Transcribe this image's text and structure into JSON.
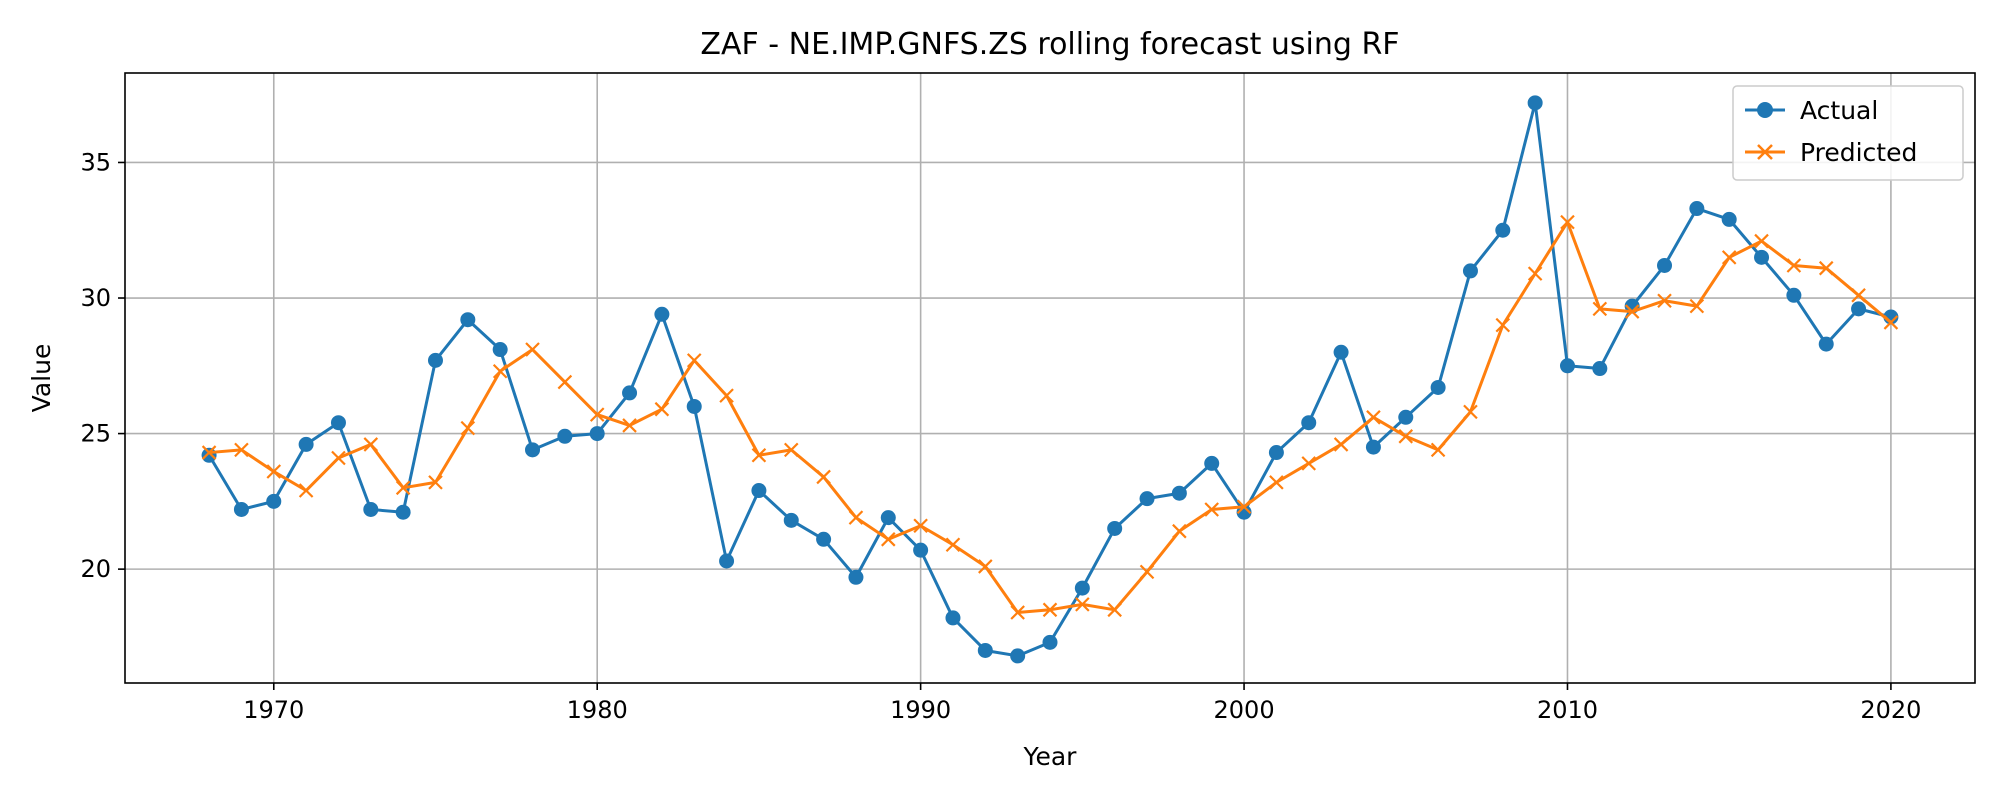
{
  "chart_data": {
    "type": "line",
    "title": "ZAF - NE.IMP.GNFS.ZS rolling forecast using RF",
    "xlabel": "Year",
    "ylabel": "Value",
    "xlim": [
      1965.4,
      2022.6
    ],
    "ylim": [
      15.8,
      38.3
    ],
    "xticks": [
      1970,
      1980,
      1990,
      2000,
      2010,
      2020
    ],
    "yticks": [
      20,
      25,
      30,
      35
    ],
    "grid": true,
    "legend_position": "top-right",
    "x": [
      1968,
      1969,
      1970,
      1971,
      1972,
      1973,
      1974,
      1975,
      1976,
      1977,
      1978,
      1979,
      1980,
      1981,
      1982,
      1983,
      1984,
      1985,
      1986,
      1987,
      1988,
      1989,
      1990,
      1991,
      1992,
      1993,
      1994,
      1995,
      1996,
      1997,
      1998,
      1999,
      2000,
      2001,
      2002,
      2003,
      2004,
      2005,
      2006,
      2007,
      2008,
      2009,
      2010,
      2011,
      2012,
      2013,
      2014,
      2015,
      2016,
      2017,
      2018,
      2019,
      2020
    ],
    "series": [
      {
        "name": "Actual",
        "color": "#1f77b4",
        "marker": "circle",
        "values": [
          24.2,
          22.2,
          22.5,
          24.6,
          25.4,
          22.2,
          22.1,
          27.7,
          29.2,
          28.1,
          24.4,
          24.9,
          25.0,
          26.5,
          29.4,
          26.0,
          20.3,
          22.9,
          21.8,
          21.1,
          19.7,
          21.9,
          20.7,
          18.2,
          17.0,
          16.8,
          17.3,
          19.3,
          21.5,
          22.6,
          22.8,
          23.9,
          22.1,
          24.3,
          25.4,
          28.0,
          24.5,
          25.6,
          26.7,
          31.0,
          32.5,
          37.2,
          27.5,
          27.4,
          29.7,
          31.2,
          33.3,
          32.9,
          31.5,
          30.1,
          28.3,
          29.6,
          29.3
        ]
      },
      {
        "name": "Predicted",
        "color": "#ff7f0e",
        "marker": "x",
        "values": [
          24.3,
          24.4,
          23.6,
          22.9,
          24.1,
          24.6,
          23.0,
          23.2,
          25.2,
          27.3,
          28.1,
          26.9,
          25.7,
          25.3,
          25.9,
          27.7,
          26.4,
          24.2,
          24.4,
          23.4,
          21.9,
          21.1,
          21.6,
          20.9,
          20.1,
          18.4,
          18.5,
          18.7,
          18.5,
          19.9,
          21.4,
          22.2,
          22.3,
          23.2,
          23.9,
          24.6,
          25.6,
          24.9,
          24.4,
          25.8,
          29.0,
          30.9,
          32.8,
          29.6,
          29.5,
          29.9,
          29.7,
          31.5,
          32.1,
          31.2,
          31.1,
          30.1,
          29.1
        ]
      }
    ]
  }
}
